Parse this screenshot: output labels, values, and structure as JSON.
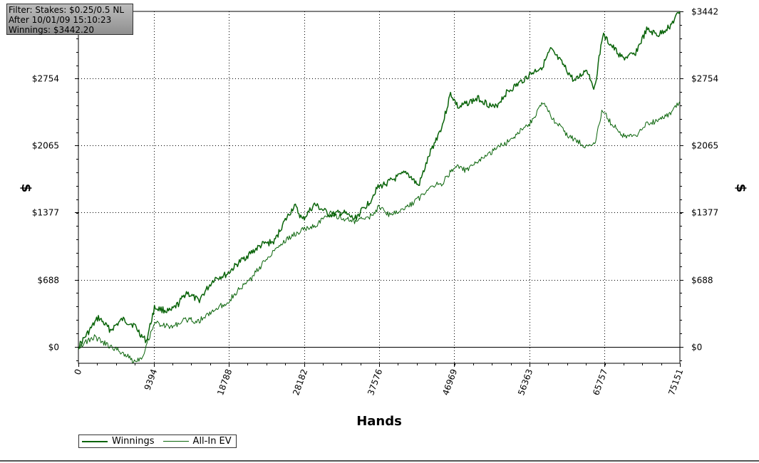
{
  "info_box": {
    "line1": "Filter: Stakes: $0.25/0.5 NL",
    "line2": "After 10/01/09 15:10:23",
    "line3": "Winnings: $3442.20"
  },
  "legend": [
    {
      "name": "Winnings",
      "color": "#0a640a"
    },
    {
      "name": "All-In EV",
      "color": "#0a640a"
    }
  ],
  "chart_data": {
    "type": "line",
    "xlabel": "Hands",
    "ylabel": "$",
    "xlim": [
      0,
      75151
    ],
    "ylim": [
      -170,
      3442
    ],
    "x_ticks": [
      0,
      9394,
      18788,
      28182,
      37576,
      46969,
      56363,
      65757,
      75151
    ],
    "x_tick_labels": [
      "0",
      "9394",
      "18788",
      "28182",
      "37576",
      "46969",
      "56363",
      "65757",
      "75151"
    ],
    "y_ticks": [
      0,
      688,
      1377,
      2065,
      2754,
      3442
    ],
    "y_tick_labels": [
      "$0",
      "$688",
      "$1377",
      "$2065",
      "$2754",
      "$3442"
    ],
    "grid": "dotted",
    "legend_position": "bottom-left",
    "series": [
      {
        "name": "Winnings",
        "color": "#0a640a",
        "x": [
          0,
          1500,
          2500,
          4000,
          5500,
          7000,
          8000,
          8500,
          9500,
          11500,
          12500,
          13500,
          15000,
          17000,
          18500,
          20000,
          21500,
          23000,
          24500,
          25500,
          27000,
          28000,
          29500,
          31500,
          33000,
          34500,
          36500,
          37200,
          37800,
          39000,
          41000,
          42500,
          44000,
          45500,
          46500,
          47500,
          48500,
          50000,
          52000,
          53500,
          55000,
          56500,
          58000,
          59000,
          60500,
          62000,
          63500,
          64500,
          65500,
          66500,
          68000,
          69500,
          71000,
          72500,
          74000,
          75151
        ],
        "values": [
          0,
          180,
          300,
          170,
          280,
          220,
          100,
          60,
          400,
          360,
          440,
          560,
          470,
          700,
          740,
          860,
          960,
          1050,
          1080,
          1250,
          1450,
          1300,
          1460,
          1350,
          1380,
          1310,
          1500,
          1620,
          1650,
          1700,
          1790,
          1650,
          2000,
          2280,
          2600,
          2450,
          2500,
          2550,
          2450,
          2610,
          2700,
          2800,
          2880,
          3050,
          2900,
          2720,
          2850,
          2650,
          3200,
          3100,
          2960,
          3000,
          3250,
          3200,
          3300,
          3442
        ]
      },
      {
        "name": "All-In EV",
        "color": "#0a640a",
        "x": [
          0,
          2000,
          4000,
          5500,
          7000,
          8000,
          9500,
          11500,
          13500,
          15000,
          17000,
          18500,
          20000,
          21500,
          23000,
          24500,
          26000,
          28000,
          29500,
          31500,
          33000,
          34500,
          36500,
          37500,
          39000,
          41000,
          42500,
          44000,
          45500,
          47000,
          48500,
          50000,
          52000,
          53500,
          55000,
          56500,
          58000,
          59500,
          61000,
          62500,
          63500,
          64500,
          65500,
          66500,
          68000,
          69500,
          71000,
          72500,
          74000,
          75151
        ],
        "values": [
          0,
          100,
          0,
          -60,
          -150,
          -100,
          250,
          200,
          280,
          260,
          380,
          450,
          580,
          690,
          850,
          1000,
          1100,
          1200,
          1240,
          1370,
          1320,
          1280,
          1340,
          1430,
          1350,
          1430,
          1520,
          1650,
          1680,
          1850,
          1810,
          1900,
          2020,
          2100,
          2200,
          2300,
          2500,
          2320,
          2180,
          2100,
          2050,
          2080,
          2440,
          2300,
          2170,
          2150,
          2300,
          2310,
          2400,
          2520
        ]
      }
    ]
  }
}
